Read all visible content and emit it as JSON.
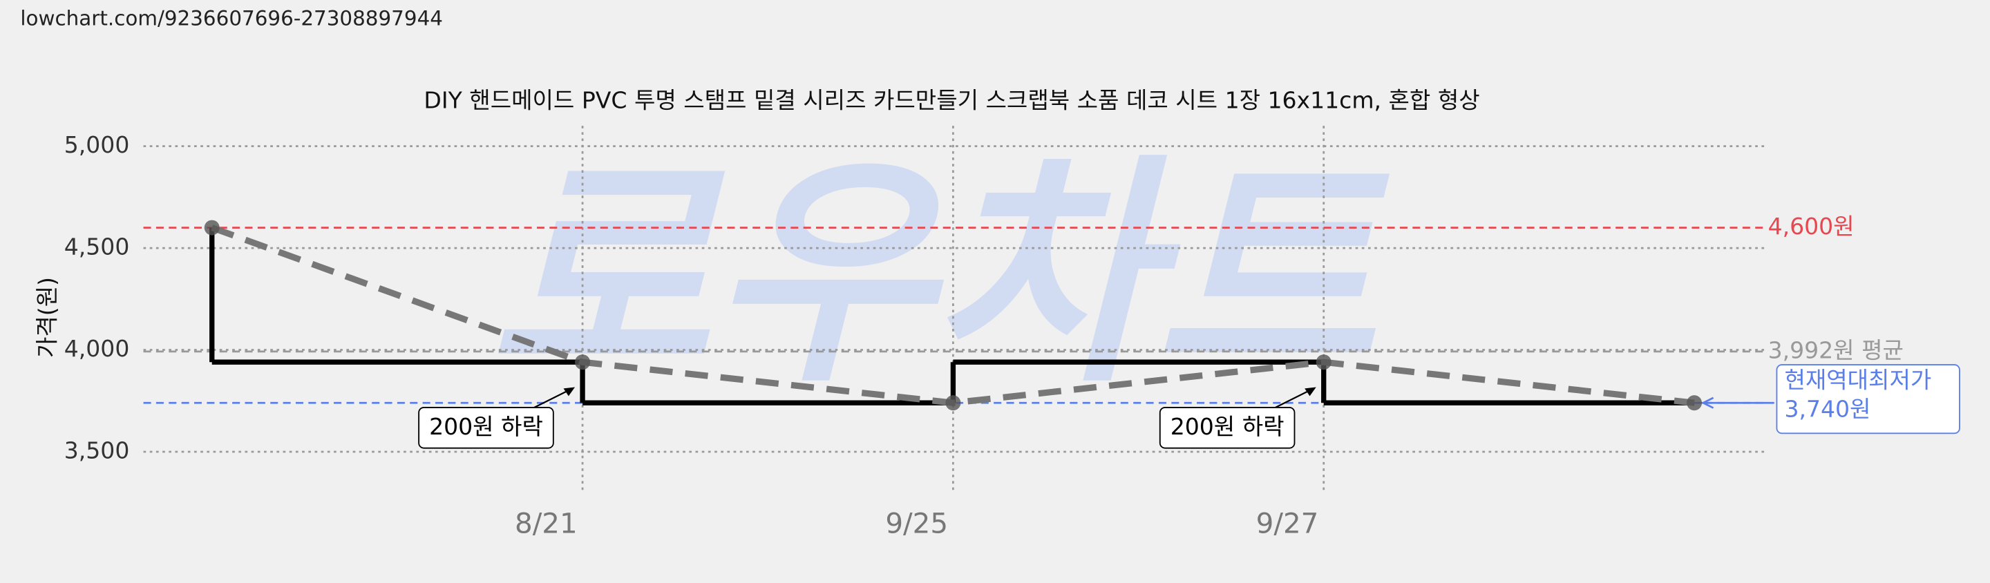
{
  "header": {
    "url": "lowchart.com/9236607696-27308897944"
  },
  "chart_data": {
    "type": "line",
    "title": "DIY 핸드메이드 PVC 투명 스탬프 밑결 시리즈 카드만들기 스크랩북 소품 데코 시트 1장 16x11cm, 혼합 형상",
    "ylabel": "가격(원)",
    "watermark": "로우차트",
    "categories": [
      null,
      "8/21",
      "9/25",
      "9/27",
      null
    ],
    "values": [
      4600,
      3940,
      3740,
      3940,
      3740
    ],
    "step": "pre",
    "trend_line": true,
    "color": "#000000",
    "trend_color": "#777777",
    "ylim": [
      3300,
      5100
    ],
    "yticks": [
      {
        "value": 3500,
        "label": "3,500"
      },
      {
        "value": 4000,
        "label": "4,000"
      },
      {
        "value": 4500,
        "label": "4,500"
      },
      {
        "value": 5000,
        "label": "5,000"
      }
    ],
    "grid": true,
    "reference_lines": [
      {
        "value": 4600,
        "label": "4,600원",
        "color": "#e8474f"
      },
      {
        "value": 3992,
        "label": "3,992원 평균",
        "color": "#999999"
      },
      {
        "value": 3740,
        "label": "현재역대최저가",
        "value_label": "3,740원",
        "color": "#5b7fe8"
      }
    ],
    "annotations": [
      "200원 하락",
      "200원 하락"
    ]
  }
}
